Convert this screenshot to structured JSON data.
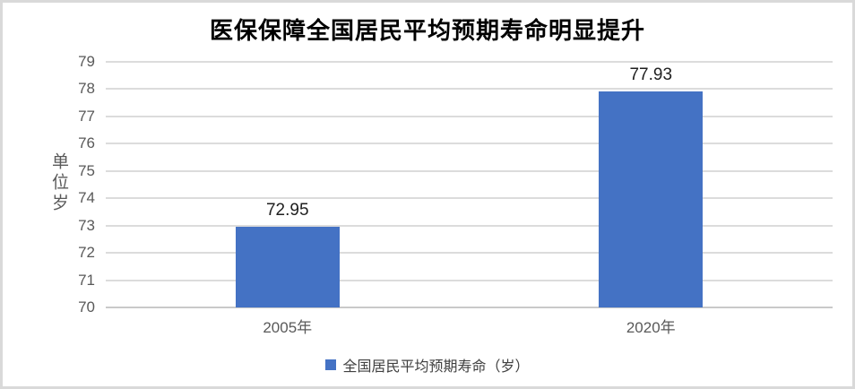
{
  "chart_data": {
    "type": "bar",
    "title": "医保保障全国居民平均预期寿命明显提升",
    "categories": [
      "2005年",
      "2020年"
    ],
    "values": [
      72.95,
      77.93
    ],
    "data_labels": [
      "72.95",
      "77.93"
    ],
    "ylabel": "单位岁",
    "xlabel": "",
    "ylim": [
      70,
      79
    ],
    "yticks": [
      70,
      71,
      72,
      73,
      74,
      75,
      76,
      77,
      78,
      79
    ],
    "grid": true,
    "legend": {
      "position": "bottom",
      "entries": [
        "全国居民平均预期寿命（岁）"
      ]
    },
    "bar_color": "#4472C4",
    "gridline_color": "#dcdcdc",
    "tick_color": "#595959",
    "label_color": "#1f1f1f"
  }
}
